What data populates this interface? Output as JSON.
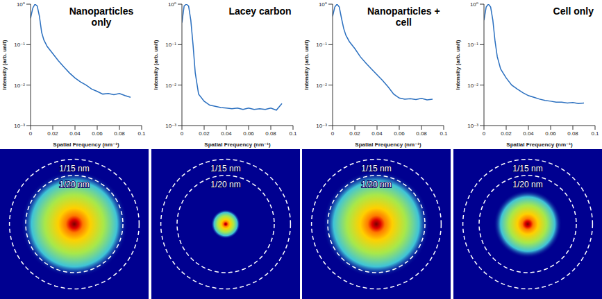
{
  "chart_data": [
    {
      "type": "line",
      "title": "Nanoparticles only",
      "x_label": "Spatial Frequency (nm⁻¹)",
      "y_label": "Intensity (arb. unit)",
      "log": "y",
      "color": "#2a6fbf",
      "x": [
        0,
        0.002,
        0.004,
        0.006,
        0.008,
        0.01,
        0.012,
        0.015,
        0.02,
        0.025,
        0.03,
        0.035,
        0.04,
        0.045,
        0.05,
        0.055,
        0.06,
        0.065,
        0.07,
        0.075,
        0.08,
        0.085,
        0.09
      ],
      "values": [
        0.45,
        0.8,
        1.0,
        0.9,
        0.5,
        0.2,
        0.13,
        0.09,
        0.06,
        0.04,
        0.028,
        0.02,
        0.015,
        0.012,
        0.01,
        0.008,
        0.007,
        0.006,
        0.0062,
        0.0058,
        0.0062,
        0.0055,
        0.005
      ],
      "xlim": [
        0,
        0.1
      ],
      "xticks": [
        0,
        0.02,
        0.04,
        0.06,
        0.08,
        0.1
      ],
      "ylim": [
        0.001,
        1
      ],
      "yticks": [
        {
          "value": 0.001,
          "label": "10⁻³"
        },
        {
          "value": 0.01,
          "label": "10⁻²"
        },
        {
          "value": 0.1,
          "label": "10⁻¹"
        },
        {
          "value": 1,
          "label": "10⁰"
        }
      ]
    },
    {
      "type": "line",
      "title": "Lacey carbon",
      "x_label": "Spatial Frequency (nm⁻¹)",
      "y_label": "Intensity (arb. unit)",
      "log": "y",
      "color": "#2a6fbf",
      "x": [
        0,
        0.002,
        0.004,
        0.006,
        0.008,
        0.01,
        0.012,
        0.015,
        0.02,
        0.025,
        0.03,
        0.035,
        0.04,
        0.045,
        0.05,
        0.055,
        0.06,
        0.065,
        0.07,
        0.075,
        0.08,
        0.085,
        0.09
      ],
      "values": [
        0.35,
        0.9,
        1.0,
        0.9,
        0.4,
        0.1,
        0.02,
        0.006,
        0.004,
        0.0032,
        0.003,
        0.0028,
        0.0027,
        0.0026,
        0.0027,
        0.0025,
        0.0027,
        0.0025,
        0.0026,
        0.0025,
        0.0027,
        0.0024,
        0.0035
      ],
      "xlim": [
        0,
        0.1
      ],
      "xticks": [
        0,
        0.02,
        0.04,
        0.06,
        0.08,
        0.1
      ],
      "ylim": [
        0.001,
        1
      ],
      "yticks": [
        {
          "value": 0.001,
          "label": "10⁻³"
        },
        {
          "value": 0.01,
          "label": "10⁻²"
        },
        {
          "value": 0.1,
          "label": "10⁻¹"
        },
        {
          "value": 1,
          "label": "10⁰"
        }
      ]
    },
    {
      "type": "line",
      "title": "Nanoparticles + cell",
      "x_label": "Spatial Frequency (nm⁻¹)",
      "y_label": "Intensity (arb. unit)",
      "log": "y",
      "color": "#2a6fbf",
      "x": [
        0,
        0.002,
        0.004,
        0.006,
        0.008,
        0.01,
        0.012,
        0.015,
        0.02,
        0.025,
        0.03,
        0.035,
        0.04,
        0.045,
        0.05,
        0.055,
        0.06,
        0.065,
        0.07,
        0.075,
        0.08,
        0.085,
        0.09
      ],
      "values": [
        0.5,
        0.85,
        1.0,
        0.85,
        0.45,
        0.25,
        0.17,
        0.12,
        0.08,
        0.05,
        0.035,
        0.025,
        0.018,
        0.013,
        0.009,
        0.006,
        0.0048,
        0.0045,
        0.0046,
        0.0044,
        0.0047,
        0.0043,
        0.0045
      ],
      "xlim": [
        0,
        0.1
      ],
      "xticks": [
        0,
        0.02,
        0.04,
        0.06,
        0.08,
        0.1
      ],
      "ylim": [
        0.001,
        1
      ],
      "yticks": [
        {
          "value": 0.001,
          "label": "10⁻³"
        },
        {
          "value": 0.01,
          "label": "10⁻²"
        },
        {
          "value": 0.1,
          "label": "10⁻¹"
        },
        {
          "value": 1,
          "label": "10⁰"
        }
      ]
    },
    {
      "type": "line",
      "title": "Cell only",
      "x_label": "Spatial Frequency (nm⁻¹)",
      "y_label": "Intensity (arb. unit)",
      "log": "y",
      "color": "#2a6fbf",
      "x": [
        0,
        0.002,
        0.004,
        0.006,
        0.008,
        0.01,
        0.012,
        0.015,
        0.02,
        0.025,
        0.03,
        0.035,
        0.04,
        0.045,
        0.05,
        0.055,
        0.06,
        0.065,
        0.07,
        0.075,
        0.08,
        0.085,
        0.09
      ],
      "values": [
        0.4,
        0.85,
        1.0,
        0.85,
        0.4,
        0.12,
        0.05,
        0.025,
        0.015,
        0.01,
        0.008,
        0.0065,
        0.0055,
        0.005,
        0.0045,
        0.0042,
        0.004,
        0.0038,
        0.0038,
        0.0036,
        0.0037,
        0.0035,
        0.0036
      ],
      "xlim": [
        0,
        0.1
      ],
      "xticks": [
        0,
        0.02,
        0.04,
        0.06,
        0.08,
        0.1
      ],
      "ylim": [
        0.001,
        1
      ],
      "yticks": [
        {
          "value": 0.001,
          "label": "10⁻³"
        },
        {
          "value": 0.01,
          "label": "10⁻²"
        },
        {
          "value": 0.1,
          "label": "10⁻¹"
        },
        {
          "value": 1,
          "label": "10⁰"
        }
      ]
    }
  ],
  "diffraction_rings": [
    {
      "label": "1/15 nm",
      "value": 0.0667
    },
    {
      "label": "1/20 nm",
      "value": 0.05
    }
  ]
}
